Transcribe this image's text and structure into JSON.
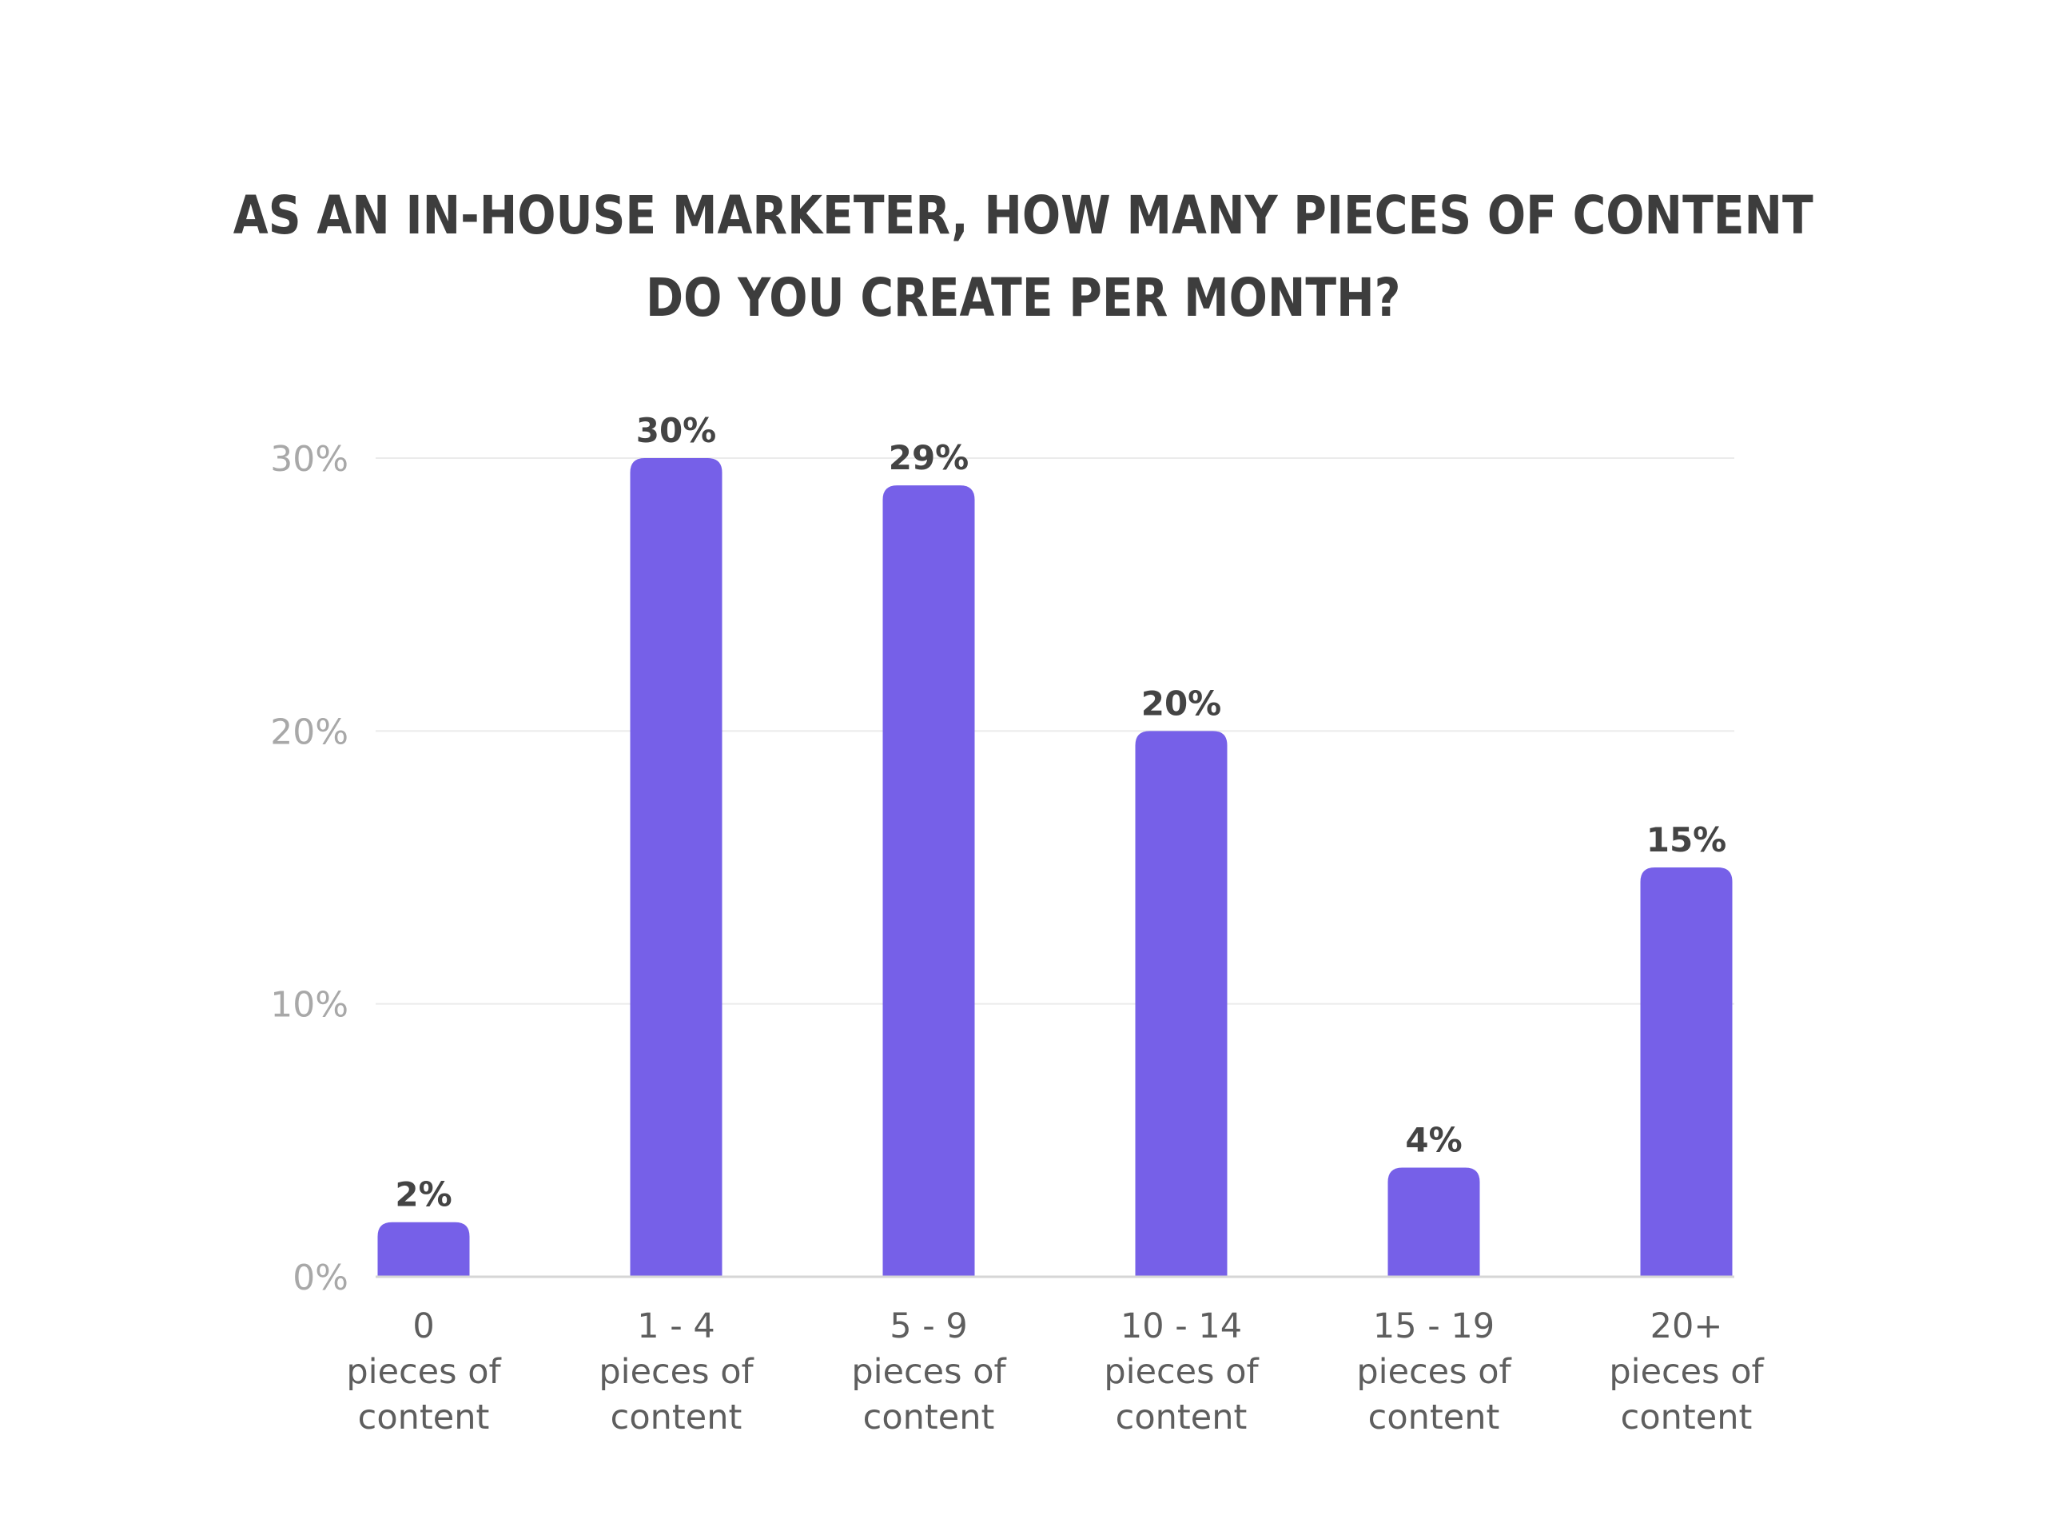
{
  "chart_data": {
    "type": "bar",
    "title": "AS AN IN-HOUSE MARKETER, HOW MANY PIECES OF CONTENT DO YOU CREATE PER MONTH?",
    "title_lines": [
      "AS AN IN-HOUSE MARKETER, HOW MANY PIECES OF CONTENT",
      "DO YOU CREATE PER MONTH?"
    ],
    "xlabel": "",
    "ylabel": "",
    "categories": [
      "0 pieces of content",
      "1 - 4 pieces of content",
      "5 - 9 pieces of content",
      "10 - 14 pieces of content",
      "15 - 19 pieces of content",
      "20+ pieces of content"
    ],
    "category_lines": [
      [
        "0",
        "pieces of",
        "content"
      ],
      [
        "1 - 4",
        "pieces of",
        "content"
      ],
      [
        "5 - 9",
        "pieces of",
        "content"
      ],
      [
        "10 - 14",
        "pieces of",
        "content"
      ],
      [
        "15 - 19",
        "pieces of",
        "content"
      ],
      [
        "20+",
        "pieces of",
        "content"
      ]
    ],
    "values": [
      2,
      30,
      29,
      20,
      4,
      15
    ],
    "value_labels": [
      "2%",
      "30%",
      "29%",
      "20%",
      "4%",
      "15%"
    ],
    "ylim": [
      0,
      30
    ],
    "y_ticks": [
      0,
      10,
      20,
      30
    ],
    "y_tick_labels": [
      "0%",
      "10%",
      "20%",
      "30%"
    ],
    "grid": true,
    "legend": "none",
    "colors": {
      "bar": "#7660e8",
      "title": "#3d3d3d",
      "value_label": "#444444",
      "tick_label": "#a8a8a8",
      "category_label": "#5e5e5e",
      "grid": "#ebebeb",
      "axis": "#d6d6d6"
    }
  }
}
